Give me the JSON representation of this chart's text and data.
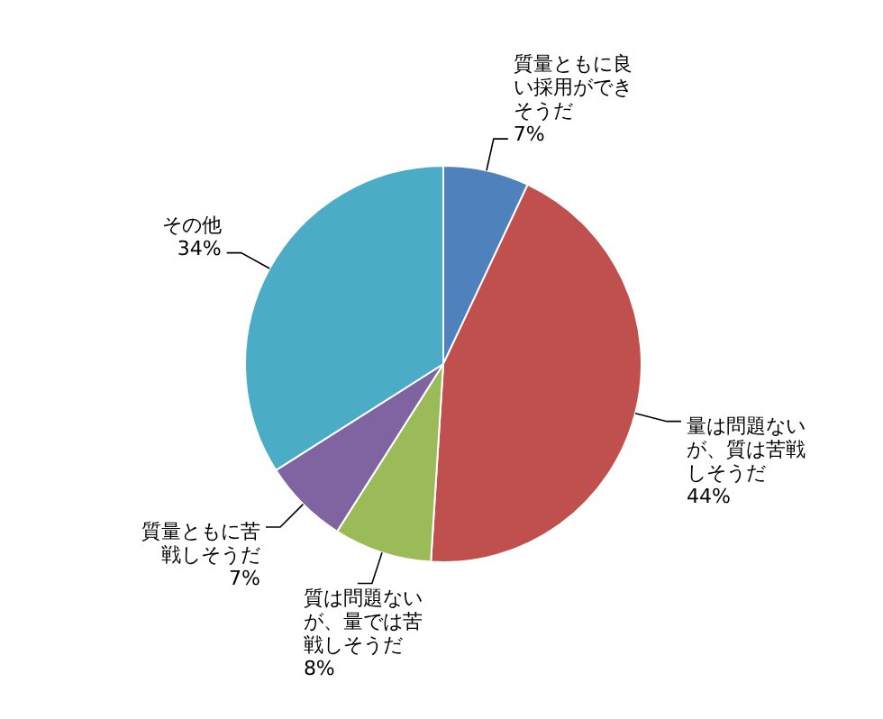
{
  "chart_data": {
    "type": "pie",
    "categories": [
      "質量ともに良い採用ができそうだ",
      "量は問題ないが、質は苦戦しそうだ",
      "質は問題ないが、量では苦戦しそうだ",
      "質量ともに苦戦しそうだ",
      "その他"
    ],
    "values": [
      7,
      44,
      8,
      7,
      34
    ],
    "colors": [
      "#4f81bd",
      "#c0504d",
      "#9bbb59",
      "#8064a2",
      "#4bacc6"
    ],
    "value_labels": [
      "7%",
      "44%",
      "8%",
      "7%",
      "34%"
    ]
  }
}
